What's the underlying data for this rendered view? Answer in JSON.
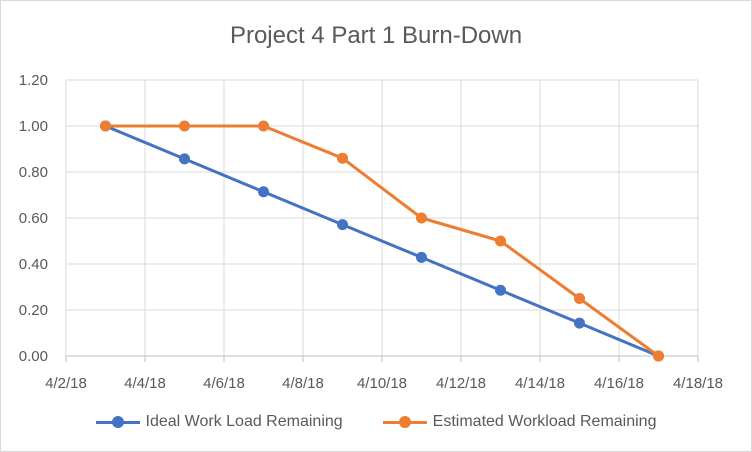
{
  "chart_data": {
    "type": "line",
    "title": "Project 4 Part 1 Burn-Down",
    "xlabel": "",
    "ylabel": "",
    "x_ticks": [
      "4/2/18",
      "4/4/18",
      "4/6/18",
      "4/8/18",
      "4/10/18",
      "4/12/18",
      "4/14/18",
      "4/16/18",
      "4/18/18"
    ],
    "y_ticks": [
      "0.00",
      "0.20",
      "0.40",
      "0.60",
      "0.80",
      "1.00",
      "1.20"
    ],
    "xlim": [
      "2018-04-02",
      "2018-04-18"
    ],
    "ylim": [
      0,
      1.2
    ],
    "grid": true,
    "legend_position": "bottom",
    "x": [
      "2018-04-03",
      "2018-04-05",
      "2018-04-07",
      "2018-04-09",
      "2018-04-11",
      "2018-04-13",
      "2018-04-15",
      "2018-04-17"
    ],
    "series": [
      {
        "name": "Ideal Work Load Remaining",
        "color": "#4472c4",
        "values": [
          1.0,
          0.857,
          0.714,
          0.571,
          0.429,
          0.286,
          0.143,
          0.0
        ]
      },
      {
        "name": "Estimated Workload Remaining",
        "color": "#ed7d31",
        "values": [
          1.0,
          1.0,
          1.0,
          0.86,
          0.6,
          0.5,
          0.25,
          0.0
        ]
      }
    ]
  }
}
